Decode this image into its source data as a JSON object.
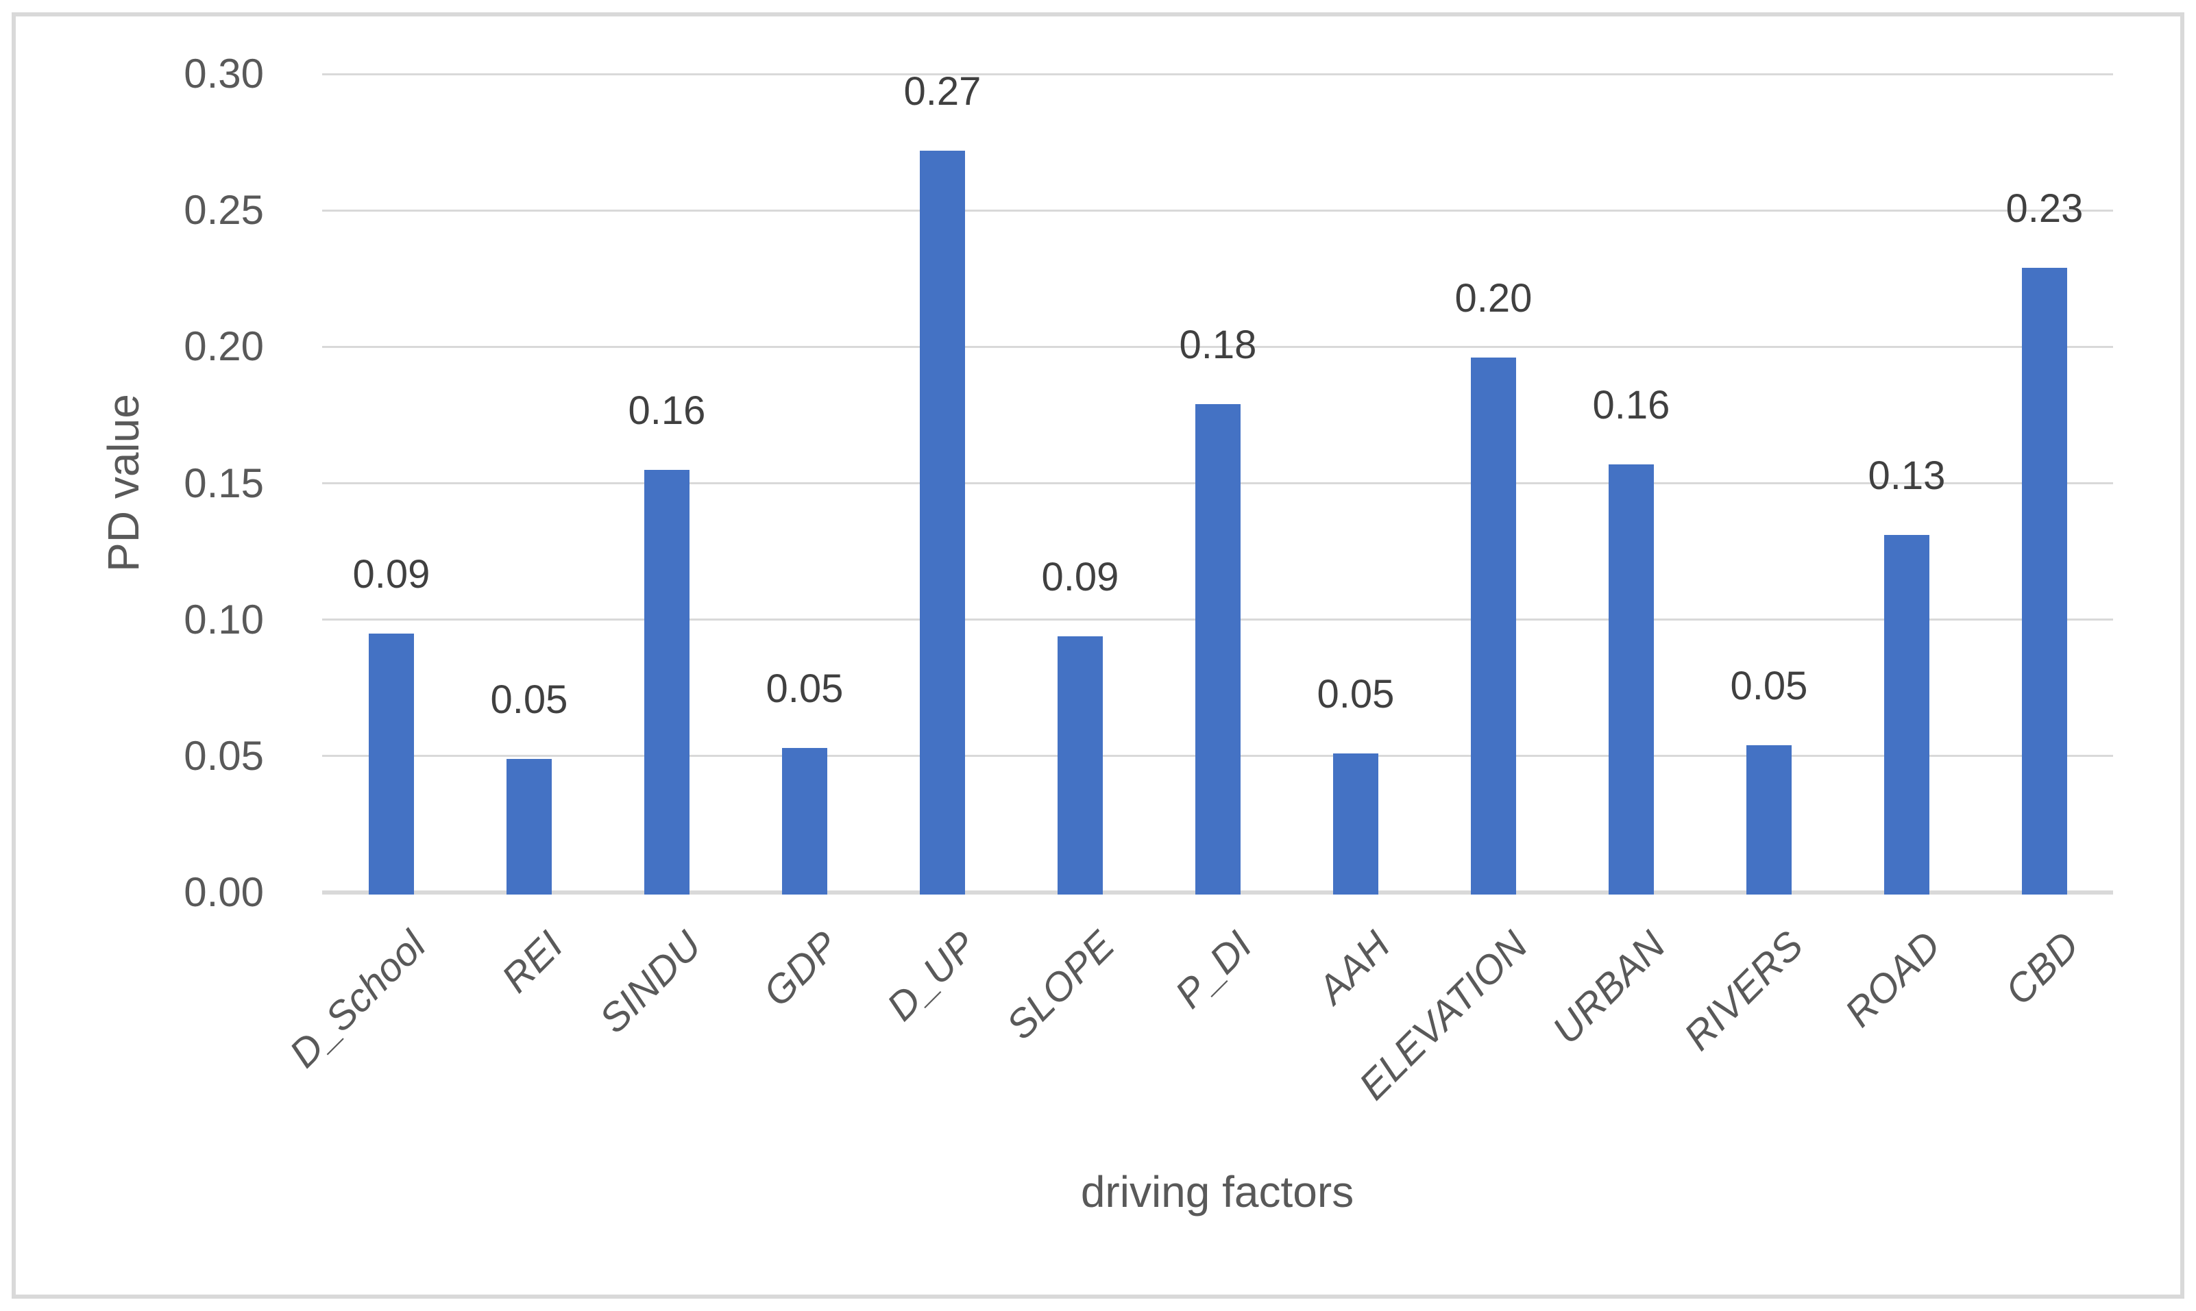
{
  "figure": {
    "background": "#FFFFFF",
    "frame_color": "#D9D9D9"
  },
  "chart_data": {
    "type": "bar",
    "title": "",
    "xlabel": "driving factors",
    "ylabel": "PD value",
    "categories": [
      "D_School",
      "REI",
      "SINDU",
      "GDP",
      "D_UP",
      "SLOPE",
      "P_DI",
      "AAH",
      "ELEVATION",
      "URBAN",
      "RIVERS",
      "ROAD",
      "CBD"
    ],
    "values": [
      0.095,
      0.049,
      0.155,
      0.053,
      0.272,
      0.094,
      0.179,
      0.051,
      0.196,
      0.157,
      0.054,
      0.131,
      0.229
    ],
    "data_labels": [
      "0.09",
      "0.05",
      "0.16",
      "0.05",
      "0.27",
      "0.09",
      "0.18",
      "0.05",
      "0.20",
      "0.16",
      "0.05",
      "0.13",
      "0.23"
    ],
    "y_ticks": [
      0.3,
      0.25,
      0.2,
      0.15,
      0.1,
      0.05,
      0.0
    ],
    "y_tick_labels": [
      "0.30",
      "0.25",
      "0.20",
      "0.15",
      "0.10",
      "0.05",
      "0.00"
    ],
    "ylim": [
      0,
      0.3
    ],
    "grid": "horizontal",
    "legend": "none",
    "bar_orientation": "vertical",
    "x_tick_rotation_deg": 45,
    "colors": {
      "bar": "#4472C4",
      "data_label": "#404040",
      "axis_text": "#595959",
      "gridline": "#D9D9D9",
      "axis_line": "#D9D9D9"
    }
  }
}
